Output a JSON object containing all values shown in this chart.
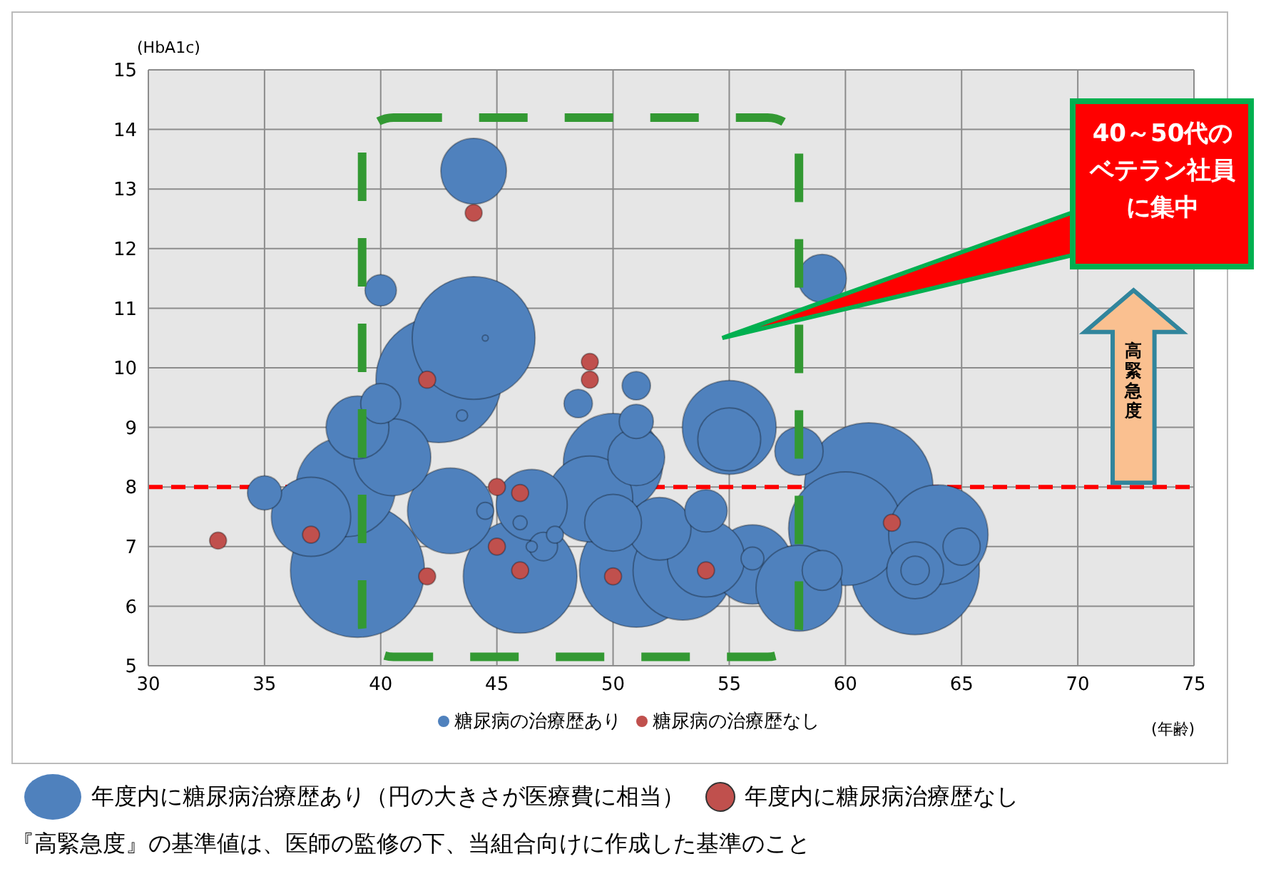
{
  "chart_data": {
    "type": "bubble",
    "xlabel": "(年齢)",
    "ylabel": "(HbA1c)",
    "xlim": [
      30,
      75
    ],
    "ylim": [
      5,
      15
    ],
    "xticks": [
      30,
      35,
      40,
      45,
      50,
      55,
      60,
      65,
      70,
      75
    ],
    "yticks": [
      5,
      6,
      7,
      8,
      9,
      10,
      11,
      12,
      13,
      14,
      15
    ],
    "grid": true,
    "legend": "bottom",
    "series": [
      {
        "name": "糖尿病の治療歴あり",
        "color": "#4f81bd",
        "x": [
          39,
          63,
          42.5,
          61,
          44,
          60,
          46,
          51,
          38.5,
          64,
          50,
          53,
          43,
          49,
          37,
          40.5,
          55,
          56,
          58,
          46.5,
          54,
          44,
          39,
          52,
          55,
          51,
          50,
          63,
          58,
          59,
          54,
          40,
          65,
          35,
          51,
          40,
          48.5,
          51,
          63,
          56,
          47,
          59,
          47.5,
          46,
          46.5,
          43.5,
          44.5,
          44.5
        ],
        "values": [
          6.6,
          6.6,
          9.8,
          8.0,
          10.5,
          7.3,
          6.5,
          6.6,
          8.0,
          7.2,
          8.4,
          6.6,
          7.6,
          7.8,
          7.5,
          8.5,
          9.0,
          6.7,
          6.3,
          7.7,
          6.8,
          13.3,
          9.0,
          7.3,
          8.8,
          8.5,
          7.4,
          6.6,
          8.6,
          11.5,
          7.6,
          9.4,
          7.0,
          7.9,
          9.1,
          11.3,
          9.4,
          9.7,
          6.6,
          6.8,
          7.0,
          6.6,
          7.2,
          7.4,
          7.0,
          9.2,
          7.6,
          10.5
        ],
        "sizes": [
          1,
          0.92,
          0.88,
          0.92,
          0.84,
          0.72,
          0.72,
          0.72,
          0.55,
          0.55,
          0.55,
          0.55,
          0.41,
          0.41,
          0.35,
          0.33,
          0.49,
          0.35,
          0.41,
          0.28,
          0.33,
          0.24,
          0.22,
          0.22,
          0.22,
          0.18,
          0.18,
          0.18,
          0.13,
          0.13,
          0.1,
          0.089,
          0.077,
          0.065,
          0.065,
          0.055,
          0.045,
          0.045,
          0.045,
          0.029,
          0.045,
          0.089,
          0.016,
          0.011,
          0.007,
          0.007,
          0.016,
          0.002
        ]
      },
      {
        "name": "糖尿病の治療歴なし",
        "color": "#c0504d",
        "x": [
          33,
          37,
          42,
          42,
          44,
          45,
          45,
          46,
          46,
          49,
          49,
          50,
          54,
          62
        ],
        "values": [
          7.1,
          7.2,
          9.8,
          6.5,
          12.6,
          8.0,
          7.0,
          7.9,
          6.6,
          10.1,
          9.8,
          6.5,
          6.6,
          7.4
        ],
        "sizes": [
          0.016,
          0.016,
          0.016,
          0.016,
          0.016,
          0.016,
          0.016,
          0.016,
          0.016,
          0.016,
          0.016,
          0.016,
          0.016,
          0.016
        ]
      }
    ],
    "ref_lines": [
      {
        "axis": "y",
        "value": 8,
        "color": "#ff0000",
        "line_style": "dashed"
      }
    ],
    "annotations": [
      "40～50代のベテラン社員に集中",
      "高緊急度",
      "年度内に糖尿病治療歴あり（円の大きさが医療費に相当）",
      "年度内に糖尿病治療歴なし",
      "『高緊急度』の基準値は、医師の監修の下、当組合向けに作成した基準のこと"
    ]
  }
}
